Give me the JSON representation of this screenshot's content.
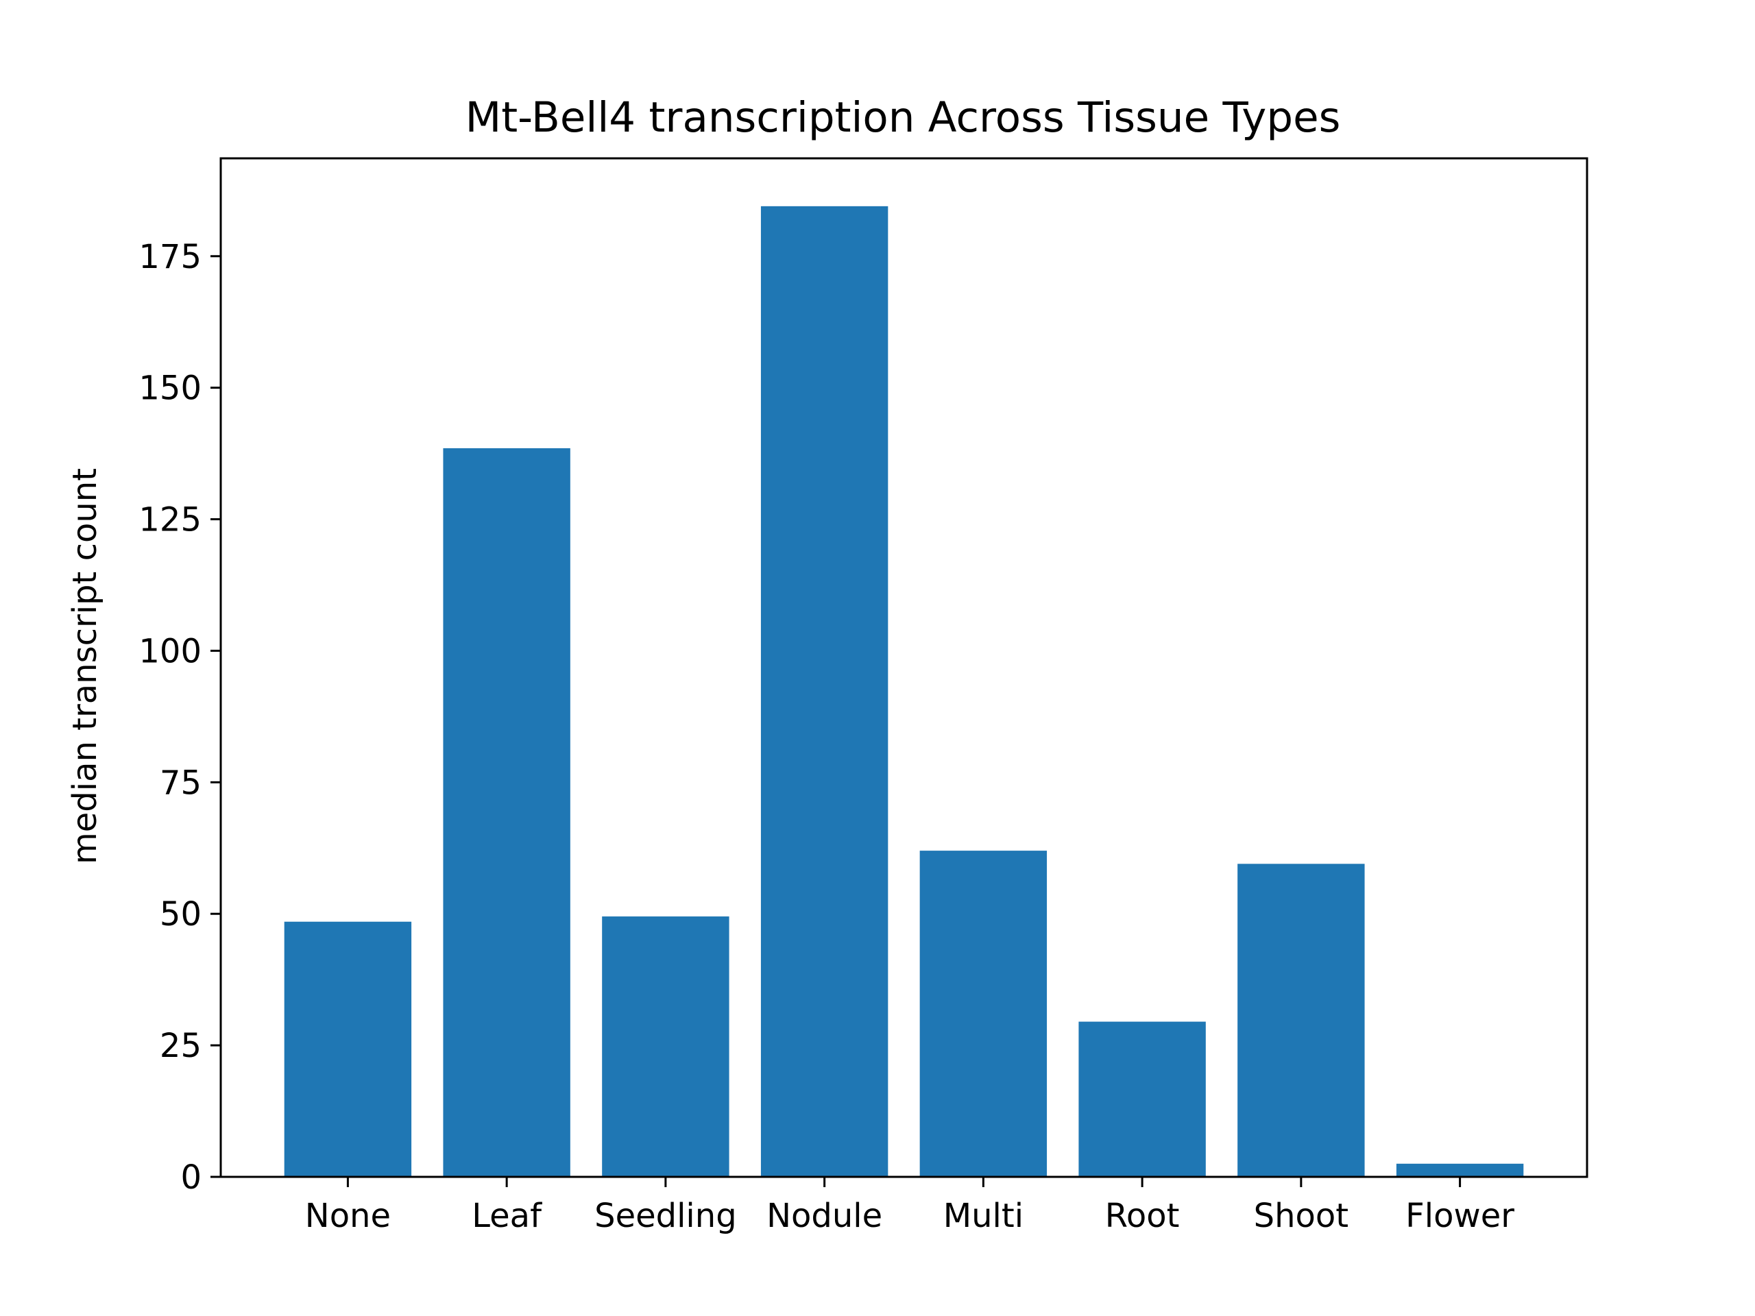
{
  "chart_data": {
    "type": "bar",
    "title": "Mt-Bell4 transcription Across Tissue Types",
    "xlabel": "",
    "ylabel": "median transcript count",
    "categories": [
      "None",
      "Leaf",
      "Seedling",
      "Nodule",
      "Multi",
      "Root",
      "Shoot",
      "Flower"
    ],
    "values": [
      48.5,
      138.5,
      49.5,
      184.5,
      62,
      29.5,
      59.5,
      2.5
    ],
    "yticks": [
      0,
      25,
      50,
      75,
      100,
      125,
      150,
      175
    ],
    "ytick_labels": [
      "0",
      "25",
      "50",
      "75",
      "100",
      "125",
      "150",
      "175"
    ],
    "ylim": [
      0,
      193.6
    ],
    "grid": false,
    "bar_color": "#1f77b4"
  }
}
